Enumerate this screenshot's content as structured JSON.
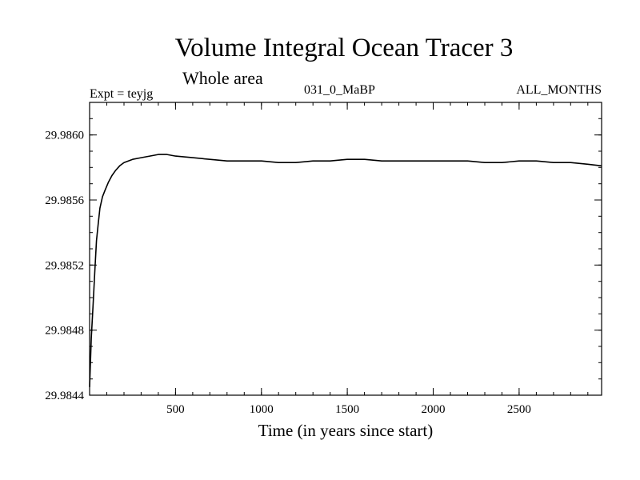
{
  "chart_data": {
    "type": "line",
    "title": "Volume Integral Ocean Tracer 3",
    "subtitle": "Whole area",
    "annotations": {
      "left": "Expt = teyjg",
      "center": "031_0_MaBP",
      "right": "ALL_MONTHS"
    },
    "xlabel": "Time (in years since start)",
    "ylabel": "",
    "xlim": [
      0,
      2980
    ],
    "ylim": [
      29.9844,
      29.9862
    ],
    "xticks": [
      500,
      1000,
      1500,
      2000,
      2500
    ],
    "xtick_labels": [
      "500",
      "1000",
      "1500",
      "2000",
      "2500"
    ],
    "yticks": [
      29.9844,
      29.9848,
      29.9852,
      29.9856,
      29.986
    ],
    "ytick_labels": [
      "29.9844",
      "29.9848",
      "29.9852",
      "29.9856",
      "29.9860"
    ],
    "grid": false,
    "line_color": "#000000",
    "series": [
      {
        "x": [
          0,
          10,
          20,
          30,
          40,
          50,
          60,
          75,
          90,
          110,
          130,
          150,
          175,
          200,
          250,
          300,
          350,
          400,
          450,
          500,
          600,
          700,
          800,
          900,
          1000,
          1100,
          1200,
          1300,
          1400,
          1500,
          1600,
          1700,
          1800,
          1900,
          2000,
          2100,
          2200,
          2300,
          2400,
          2500,
          2600,
          2700,
          2800,
          2900,
          2980
        ],
        "values": [
          29.98445,
          29.98475,
          29.98495,
          29.98515,
          29.98535,
          29.98545,
          29.98555,
          29.98562,
          29.98566,
          29.98571,
          29.98575,
          29.98578,
          29.98581,
          29.98583,
          29.98585,
          29.98586,
          29.98587,
          29.98588,
          29.98588,
          29.98587,
          29.98586,
          29.98585,
          29.98584,
          29.98584,
          29.98584,
          29.98583,
          29.98583,
          29.98584,
          29.98584,
          29.98585,
          29.98585,
          29.98584,
          29.98584,
          29.98584,
          29.98584,
          29.98584,
          29.98584,
          29.98583,
          29.98583,
          29.98584,
          29.98584,
          29.98583,
          29.98583,
          29.98582,
          29.98581
        ]
      }
    ]
  }
}
